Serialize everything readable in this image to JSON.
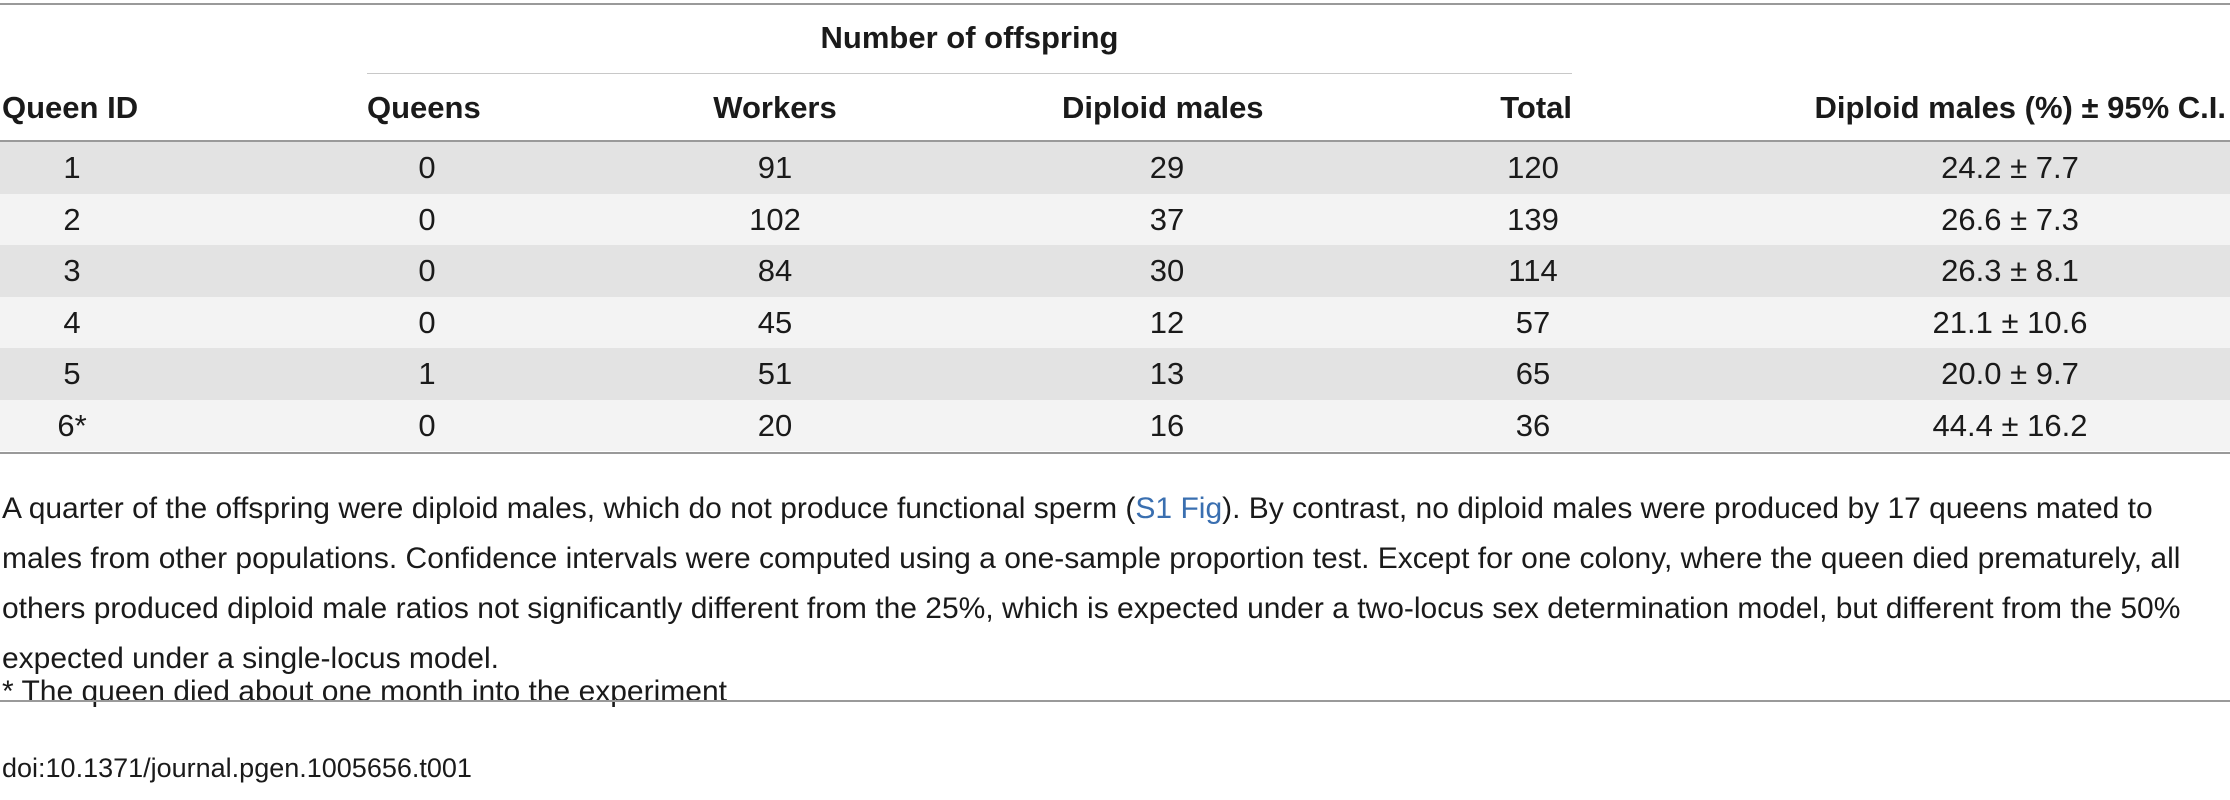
{
  "table": {
    "group_header": "Number of offspring",
    "columns": [
      "Queen ID",
      "Queens",
      "Workers",
      "Diploid males",
      "Total",
      "Diploid males (%) ± 95% C.I."
    ],
    "rows": [
      [
        "1",
        "0",
        "91",
        "29",
        "120",
        "24.2 ± 7.7"
      ],
      [
        "2",
        "0",
        "102",
        "37",
        "139",
        "26.6 ± 7.3"
      ],
      [
        "3",
        "0",
        "84",
        "30",
        "114",
        "26.3 ± 8.1"
      ],
      [
        "4",
        "0",
        "45",
        "12",
        "57",
        "21.1 ± 10.6"
      ],
      [
        "5",
        "1",
        "51",
        "13",
        "65",
        "20.0 ± 9.7"
      ],
      [
        "6*",
        "0",
        "20",
        "16",
        "36",
        "44.4 ± 16.2"
      ]
    ]
  },
  "caption": {
    "before_link": "A quarter of the offspring were diploid males, which do not produce functional sperm (",
    "link": "S1 Fig",
    "after_link": "). By contrast, no diploid males were produced by 17 queens mated to males from other populations. Confidence intervals were computed using a one-sample proportion test. Except for one colony, where the queen died prematurely, all others produced diploid male ratios not significantly different from the 25%, which is expected under a two-locus sex determination model, but different from the 50% expected under a single-locus model."
  },
  "footnote": "* The queen died about one month into the experiment",
  "doi": "doi:10.1371/journal.pgen.1005656.t001",
  "colors": {
    "link": "#3a6fb0",
    "row_shade": "#e3e3e3",
    "row_light": "#f3f3f3"
  }
}
